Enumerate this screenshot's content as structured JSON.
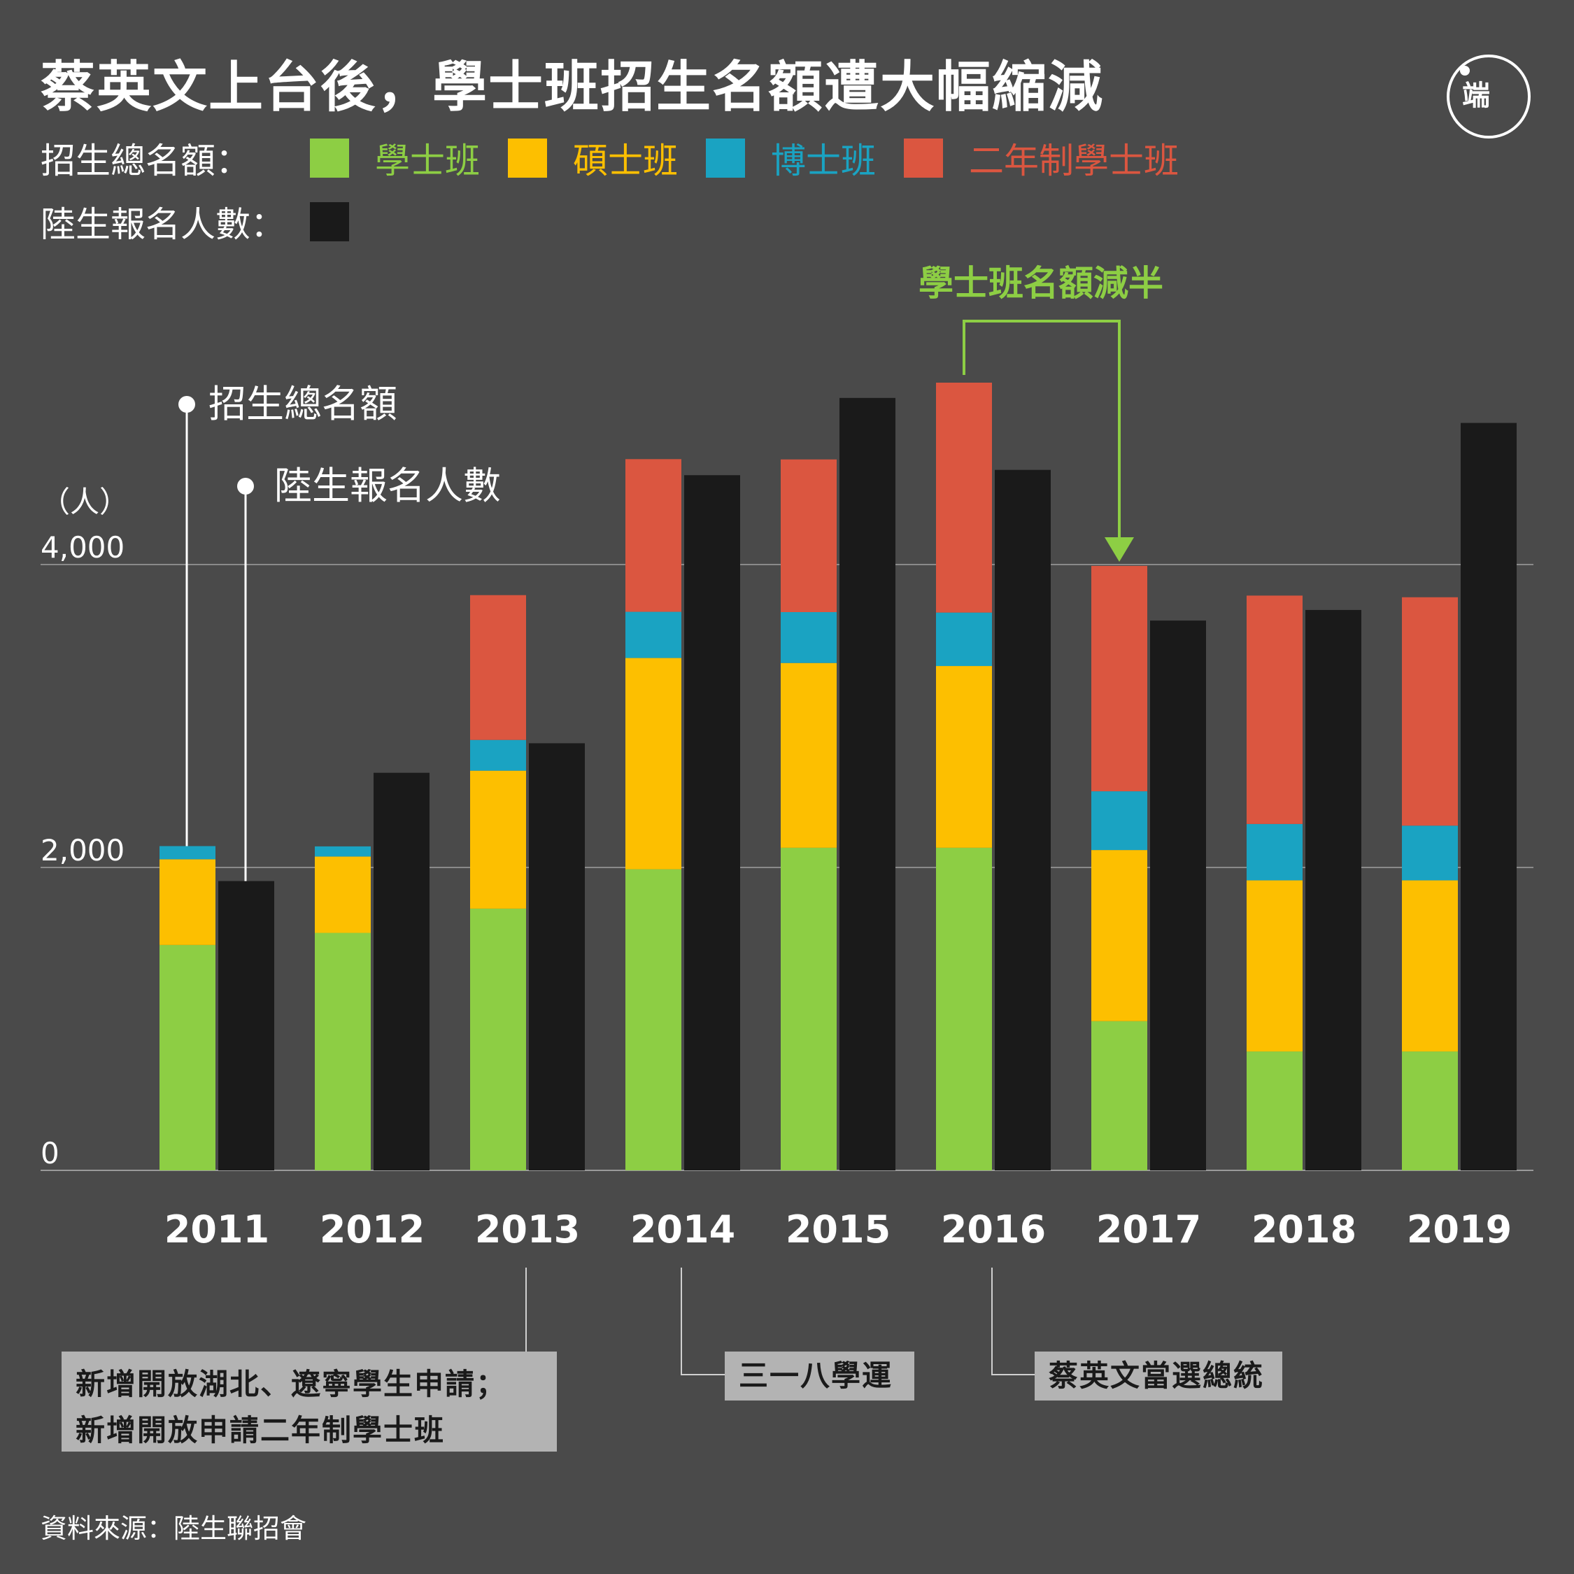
{
  "title": "蔡英文上台後，學士班招生名額遭大幅縮減",
  "logo_text": "端",
  "legend": {
    "quota_label": "招生總名額：",
    "applicants_label": "陸生報名人數：",
    "items": [
      {
        "name": "學士班",
        "color": "#8dce44"
      },
      {
        "name": "碩士班",
        "color": "#fdbf00"
      },
      {
        "name": "博士班",
        "color": "#1aa3c2"
      },
      {
        "name": "二年制學士班",
        "color": "#db5640"
      }
    ],
    "applicants_color": "#1a1a1a"
  },
  "pointer_labels": {
    "quota": "招生總名額",
    "applicants": "陸生報名人數"
  },
  "y_unit": "（人）",
  "callout": "學士班名額減半",
  "annotations": [
    {
      "text_line1": "新增開放湖北、遼寧學生申請；",
      "text_line2": "新增開放申請二年制學士班",
      "year": "2013"
    },
    {
      "text_line1": "三一八學運",
      "year": "2014"
    },
    {
      "text_line1": "蔡英文當選總統",
      "year": "2016"
    }
  ],
  "source": "資料來源：陸生聯招會",
  "chart_data": {
    "type": "bar",
    "categories": [
      "2011",
      "2012",
      "2013",
      "2014",
      "2015",
      "2016",
      "2017",
      "2018",
      "2019"
    ],
    "series": [
      {
        "name": "學士班",
        "stack": "quota",
        "values": [
          1488,
          1568,
          1728,
          1988,
          2130,
          2130,
          985,
          785,
          785
        ]
      },
      {
        "name": "碩士班",
        "stack": "quota",
        "values": [
          566,
          504,
          911,
          1395,
          1220,
          1200,
          1130,
          1130,
          1130
        ]
      },
      {
        "name": "博士班",
        "stack": "quota",
        "values": [
          87,
          67,
          203,
          305,
          336,
          353,
          388,
          372,
          361
        ]
      },
      {
        "name": "二年制學士班",
        "stack": "quota",
        "values": [
          0,
          0,
          956,
          1008,
          1008,
          1518,
          1488,
          1508,
          1508
        ]
      },
      {
        "name": "陸生報名人數",
        "stack": "applicants",
        "values": [
          1910,
          2625,
          2820,
          4590,
          5100,
          4625,
          3630,
          3700,
          4935
        ]
      }
    ],
    "yticks": [
      "0",
      "2,000",
      "4,000"
    ],
    "ytick_values": [
      0,
      2000,
      4000
    ],
    "ylabel": "（人）",
    "ylim": [
      0,
      5400
    ],
    "grid": true
  }
}
